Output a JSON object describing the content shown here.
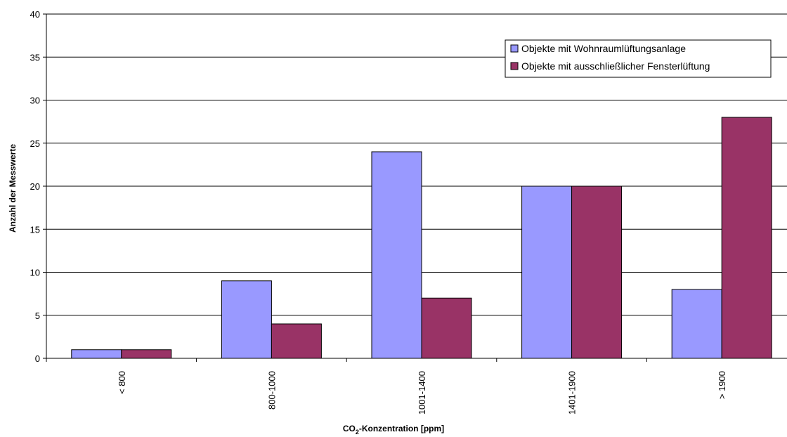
{
  "chart_data": {
    "type": "bar",
    "categories": [
      "< 800",
      "800-1000",
      "1001-1400",
      "1401-1900",
      "> 1900"
    ],
    "series": [
      {
        "name": "Objekte mit Wohnraumlüftungsanlage",
        "color": "#9999ff",
        "values": [
          1,
          9,
          24,
          20,
          8
        ]
      },
      {
        "name": "Objekte mit ausschließlicher Fensterlüftung",
        "color": "#993366",
        "values": [
          1,
          4,
          7,
          20,
          28
        ]
      }
    ],
    "ylabel": "Anzahl der Messwerte",
    "xlabel_main": "CO",
    "xlabel_sub": "2",
    "xlabel_rest": "-Konzentration [ppm]",
    "ylim": [
      0,
      40
    ],
    "yticks": [
      0,
      5,
      10,
      15,
      20,
      25,
      30,
      35,
      40
    ],
    "grid": true,
    "legend_position": "top-right"
  }
}
